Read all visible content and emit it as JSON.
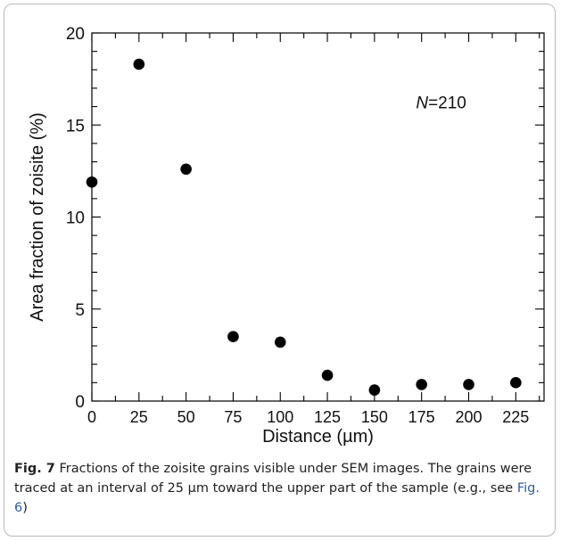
{
  "chart_data": {
    "type": "scatter",
    "title": "",
    "xlabel": "Distance (µm)",
    "ylabel": "Area fraction of zoisite (%)",
    "xlim": [
      0,
      240
    ],
    "ylim": [
      0,
      20
    ],
    "xticks": [
      0,
      25,
      50,
      75,
      100,
      125,
      150,
      175,
      200,
      225
    ],
    "yticks": [
      0,
      5,
      10,
      15,
      20
    ],
    "grid": false,
    "annotation": {
      "italic": "N",
      "text": "=210"
    },
    "series": [
      {
        "x": [
          0,
          25,
          50,
          75,
          100,
          125,
          150,
          175,
          200,
          225
        ],
        "y": [
          11.9,
          18.3,
          12.6,
          3.5,
          3.2,
          1.4,
          0.6,
          0.9,
          0.9,
          1.0
        ]
      }
    ]
  },
  "caption": {
    "label": "Fig. 7",
    "text_before": "  Fractions of the zoisite grains visible under SEM images. The grains were traced at an interval of 25 µm toward the upper part of the sample (e.g., see ",
    "ref": "Fig. 6",
    "text_after": ")"
  },
  "colors": {
    "marker": "#000000",
    "axis": "#000000",
    "border": "#b9b9b9",
    "link": "#2a5db0"
  }
}
